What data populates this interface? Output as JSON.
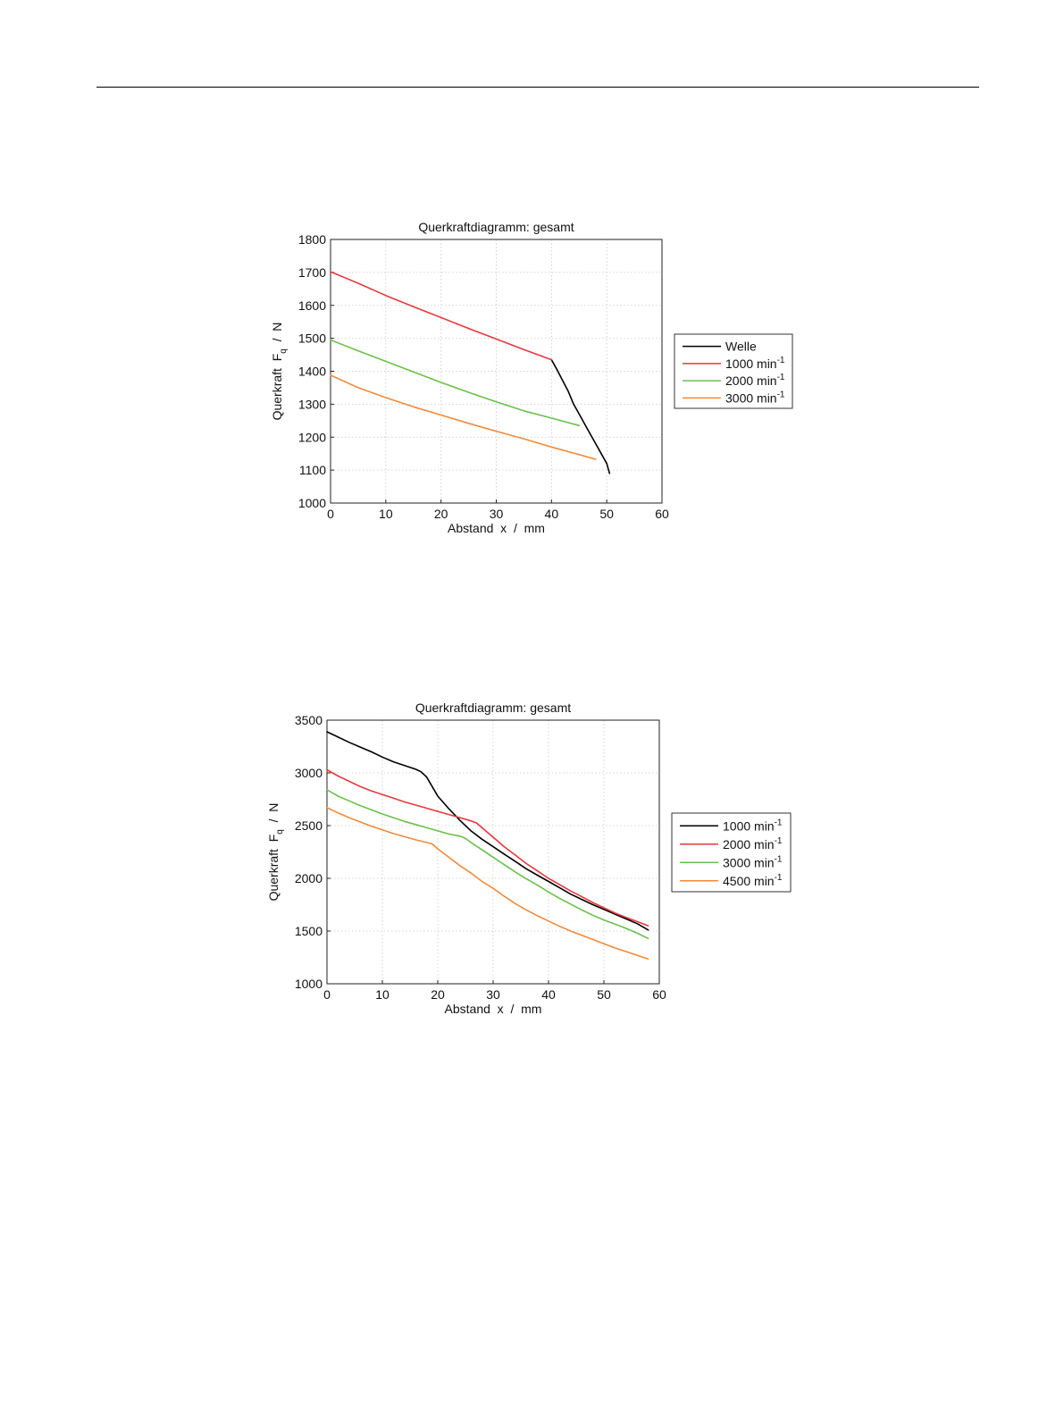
{
  "chart_data": [
    {
      "type": "line",
      "title": "Querkraftdiagramm: gesamt",
      "xlabel": "Abstand  x  /  mm",
      "ylabel": {
        "main": "Querkraft  F",
        "sub": "q",
        "tail": "  /  N"
      },
      "xlim": [
        0,
        60
      ],
      "ylim": [
        1000,
        1800
      ],
      "xticks": [
        0,
        10,
        20,
        30,
        40,
        50,
        60
      ],
      "yticks": [
        1000,
        1100,
        1200,
        1300,
        1400,
        1500,
        1600,
        1700,
        1800
      ],
      "grid": true,
      "legend_position": "right",
      "series": [
        {
          "name": "Welle",
          "legend_base": "Welle",
          "legend_sup": "",
          "color": "#000000",
          "x": [
            40,
            41,
            42,
            43,
            44,
            45,
            46,
            47,
            48,
            49,
            50,
            50.5
          ],
          "y": [
            1435,
            1405,
            1372,
            1340,
            1300,
            1270,
            1240,
            1210,
            1180,
            1150,
            1120,
            1090
          ]
        },
        {
          "name": "1000 min-1",
          "legend_base": "1000 min",
          "legend_sup": "-1",
          "color": "#e8373c",
          "x": [
            0,
            5,
            10,
            15,
            20,
            25,
            30,
            35,
            40
          ],
          "y": [
            1702,
            1667,
            1630,
            1596,
            1563,
            1530,
            1498,
            1466,
            1435
          ]
        },
        {
          "name": "2000 min-1",
          "legend_base": "2000 min",
          "legend_sup": "-1",
          "color": "#6cbf4c",
          "x": [
            0,
            5,
            10,
            15,
            20,
            25,
            30,
            35,
            40,
            45
          ],
          "y": [
            1495,
            1462,
            1430,
            1398,
            1366,
            1336,
            1307,
            1280,
            1258,
            1235
          ]
        },
        {
          "name": "3000 min-1",
          "legend_base": "3000 min",
          "legend_sup": "-1",
          "color": "#f08a3a",
          "x": [
            0,
            5,
            10,
            15,
            20,
            25,
            30,
            35,
            40,
            45,
            48
          ],
          "y": [
            1388,
            1350,
            1320,
            1292,
            1267,
            1242,
            1218,
            1195,
            1170,
            1147,
            1133
          ]
        }
      ]
    },
    {
      "type": "line",
      "title": "Querkraftdiagramm: gesamt",
      "xlabel": "Abstand  x  /  mm",
      "ylabel": {
        "main": "Querkraft  F",
        "sub": "q",
        "tail": "  /  N"
      },
      "xlim": [
        0,
        60
      ],
      "ylim": [
        1000,
        3500
      ],
      "xticks": [
        0,
        10,
        20,
        30,
        40,
        50,
        60
      ],
      "yticks": [
        1000,
        1500,
        2000,
        2500,
        3000,
        3500
      ],
      "grid": true,
      "legend_position": "right",
      "series": [
        {
          "name": "1000 min-1",
          "legend_base": "1000 min",
          "legend_sup": "-1",
          "color": "#000000",
          "x": [
            0,
            2,
            4,
            6,
            8,
            10,
            12,
            14,
            16,
            17,
            18,
            19,
            20,
            22,
            24,
            26,
            28,
            30,
            32,
            34,
            36,
            38,
            40,
            42,
            44,
            46,
            48,
            50,
            52,
            54,
            56,
            58
          ],
          "y": [
            3390,
            3340,
            3290,
            3245,
            3200,
            3150,
            3105,
            3070,
            3035,
            3010,
            2960,
            2870,
            2780,
            2660,
            2550,
            2450,
            2370,
            2300,
            2230,
            2160,
            2090,
            2030,
            1970,
            1910,
            1850,
            1800,
            1750,
            1705,
            1660,
            1615,
            1570,
            1510
          ]
        },
        {
          "name": "2000 min-1",
          "legend_base": "2000 min",
          "legend_sup": "-1",
          "color": "#e8373c",
          "x": [
            0,
            2,
            4,
            6,
            8,
            10,
            12,
            14,
            16,
            18,
            20,
            22,
            24,
            26,
            27,
            28,
            30,
            32,
            34,
            36,
            38,
            40,
            42,
            44,
            46,
            48,
            50,
            52,
            54,
            56,
            58
          ],
          "y": [
            3030,
            2970,
            2920,
            2870,
            2830,
            2795,
            2760,
            2725,
            2695,
            2665,
            2635,
            2605,
            2575,
            2545,
            2525,
            2480,
            2390,
            2300,
            2220,
            2140,
            2070,
            2000,
            1940,
            1880,
            1825,
            1770,
            1720,
            1670,
            1630,
            1590,
            1550
          ]
        },
        {
          "name": "3000 min-1",
          "legend_base": "3000 min",
          "legend_sup": "-1",
          "color": "#6cbf4c",
          "x": [
            0,
            2,
            4,
            6,
            8,
            10,
            12,
            14,
            16,
            18,
            20,
            22,
            24,
            25,
            26,
            28,
            30,
            32,
            34,
            36,
            38,
            40,
            42,
            44,
            46,
            48,
            50,
            52,
            54,
            56,
            58
          ],
          "y": [
            2840,
            2780,
            2735,
            2690,
            2650,
            2610,
            2575,
            2540,
            2510,
            2480,
            2450,
            2420,
            2400,
            2380,
            2340,
            2270,
            2200,
            2130,
            2060,
            1995,
            1935,
            1870,
            1810,
            1755,
            1700,
            1650,
            1605,
            1565,
            1525,
            1480,
            1430
          ]
        },
        {
          "name": "4500 min-1",
          "legend_base": "4500 min",
          "legend_sup": "-1",
          "color": "#f08a3a",
          "x": [
            0,
            2,
            4,
            6,
            8,
            10,
            12,
            14,
            16,
            18,
            19,
            20,
            22,
            24,
            26,
            28,
            30,
            32,
            34,
            36,
            38,
            40,
            42,
            44,
            46,
            48,
            50,
            52,
            54,
            56,
            58
          ],
          "y": [
            2670,
            2620,
            2575,
            2535,
            2495,
            2460,
            2425,
            2395,
            2365,
            2340,
            2325,
            2280,
            2200,
            2120,
            2050,
            1970,
            1905,
            1830,
            1760,
            1700,
            1645,
            1595,
            1545,
            1500,
            1460,
            1420,
            1380,
            1340,
            1305,
            1270,
            1235
          ]
        }
      ]
    }
  ]
}
